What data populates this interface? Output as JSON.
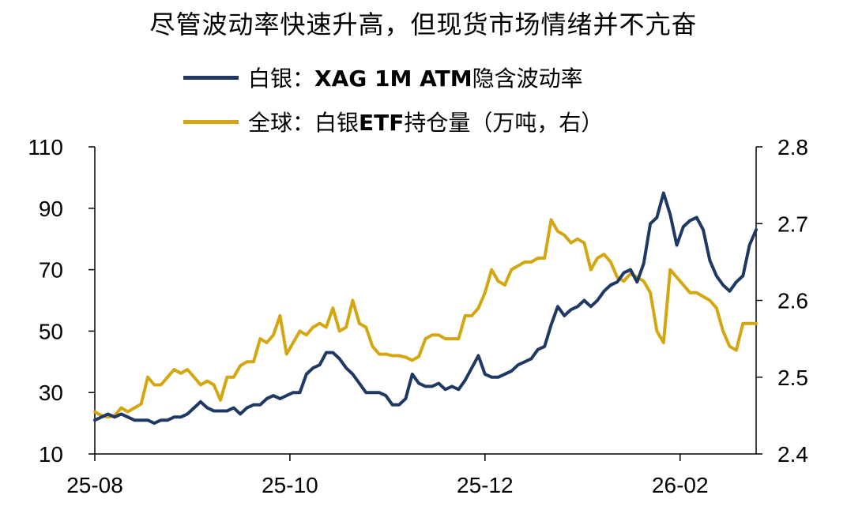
{
  "chart_data": {
    "type": "line",
    "title": "尽管波动率快速升高，但现货市场情绪并不亢奋",
    "x_ticks": [
      "25-08",
      "25-10",
      "25-12",
      "26-02"
    ],
    "y_left": {
      "lim": [
        10,
        110
      ],
      "ticks": [
        "10",
        "30",
        "50",
        "70",
        "90",
        "110"
      ]
    },
    "y_right": {
      "lim": [
        2.4,
        2.8
      ],
      "ticks": [
        "2.4",
        "2.5",
        "2.6",
        "2.7",
        "2.8"
      ]
    },
    "legend_position": "top-left",
    "series": [
      {
        "name": "XAG 1M ATM隐含波动率",
        "legend_prefix": "白银：",
        "legend_bold": "XAG 1M ATM",
        "legend_suffix": "隐含波动率",
        "axis": "left",
        "color": "#1f3864",
        "t": [
          0,
          0.01,
          0.02,
          0.03,
          0.04,
          0.05,
          0.06,
          0.07,
          0.08,
          0.09,
          0.1,
          0.11,
          0.12,
          0.13,
          0.14,
          0.15,
          0.16,
          0.17,
          0.18,
          0.19,
          0.2,
          0.21,
          0.22,
          0.23,
          0.24,
          0.25,
          0.26,
          0.27,
          0.28,
          0.29,
          0.3,
          0.31,
          0.32,
          0.33,
          0.34,
          0.35,
          0.36,
          0.37,
          0.38,
          0.39,
          0.4,
          0.41,
          0.42,
          0.43,
          0.44,
          0.45,
          0.46,
          0.47,
          0.48,
          0.49,
          0.5,
          0.51,
          0.52,
          0.53,
          0.54,
          0.55,
          0.56,
          0.57,
          0.58,
          0.59,
          0.6,
          0.61,
          0.62,
          0.63,
          0.64,
          0.65,
          0.66,
          0.67,
          0.68,
          0.69,
          0.7,
          0.71,
          0.72,
          0.73,
          0.74,
          0.75,
          0.76,
          0.77,
          0.78,
          0.79,
          0.8,
          0.81,
          0.82,
          0.83,
          0.84,
          0.85,
          0.86,
          0.87,
          0.88,
          0.89,
          0.9,
          0.91,
          0.92,
          0.93,
          0.94,
          0.95,
          0.96,
          0.97,
          0.98,
          0.99,
          1.0
        ],
        "values": [
          21,
          22,
          23,
          22,
          23,
          22,
          21,
          21,
          21,
          20,
          21,
          21,
          22,
          22,
          23,
          25,
          27,
          25,
          24,
          24,
          24,
          25,
          23,
          25,
          26,
          26,
          28,
          29,
          28,
          29,
          30,
          30,
          36,
          38,
          39,
          43,
          43,
          41,
          38,
          36,
          33,
          30,
          30,
          30,
          29,
          26,
          26,
          28,
          36,
          33,
          32,
          32,
          33,
          31,
          32,
          31,
          34,
          38,
          42,
          36,
          35,
          35,
          36,
          37,
          39,
          40,
          41,
          44,
          45,
          52,
          58,
          55,
          57,
          58,
          60,
          58,
          60,
          63,
          65,
          66,
          69,
          70,
          66,
          72,
          85,
          87,
          95,
          88,
          78,
          84,
          86,
          87,
          83,
          73,
          68,
          65,
          63,
          66,
          68,
          78,
          83
        ]
      },
      {
        "name": "白银ETF持仓量（万吨，右）",
        "legend_prefix": "全球：白银",
        "legend_bold": "ETF",
        "legend_suffix": "持仓量（万吨，右）",
        "axis": "right",
        "color": "#d4a60f",
        "t": [
          0,
          0.01,
          0.02,
          0.03,
          0.04,
          0.05,
          0.06,
          0.07,
          0.08,
          0.09,
          0.1,
          0.11,
          0.12,
          0.13,
          0.14,
          0.15,
          0.16,
          0.17,
          0.18,
          0.19,
          0.2,
          0.21,
          0.22,
          0.23,
          0.24,
          0.25,
          0.26,
          0.27,
          0.28,
          0.29,
          0.3,
          0.31,
          0.32,
          0.33,
          0.34,
          0.35,
          0.36,
          0.37,
          0.38,
          0.39,
          0.4,
          0.41,
          0.42,
          0.43,
          0.44,
          0.45,
          0.46,
          0.47,
          0.48,
          0.49,
          0.5,
          0.51,
          0.52,
          0.53,
          0.54,
          0.55,
          0.56,
          0.57,
          0.58,
          0.59,
          0.6,
          0.61,
          0.62,
          0.63,
          0.64,
          0.65,
          0.66,
          0.67,
          0.68,
          0.69,
          0.7,
          0.71,
          0.72,
          0.73,
          0.74,
          0.75,
          0.76,
          0.77,
          0.78,
          0.79,
          0.8,
          0.81,
          0.82,
          0.83,
          0.84,
          0.85,
          0.86,
          0.87,
          0.88,
          0.89,
          0.9,
          0.91,
          0.92,
          0.93,
          0.94,
          0.95,
          0.96,
          0.97,
          0.98,
          0.99,
          1.0
        ],
        "values": [
          2.455,
          2.45,
          2.448,
          2.45,
          2.46,
          2.455,
          2.46,
          2.465,
          2.5,
          2.49,
          2.49,
          2.5,
          2.51,
          2.505,
          2.51,
          2.5,
          2.49,
          2.495,
          2.49,
          2.47,
          2.5,
          2.5,
          2.515,
          2.52,
          2.52,
          2.55,
          2.545,
          2.555,
          2.58,
          2.53,
          2.545,
          2.56,
          2.555,
          2.565,
          2.57,
          2.565,
          2.59,
          2.56,
          2.565,
          2.6,
          2.57,
          2.565,
          2.54,
          2.53,
          2.53,
          2.528,
          2.528,
          2.526,
          2.522,
          2.527,
          2.55,
          2.555,
          2.555,
          2.55,
          2.55,
          2.55,
          2.58,
          2.58,
          2.59,
          2.61,
          2.64,
          2.625,
          2.62,
          2.64,
          2.645,
          2.65,
          2.65,
          2.655,
          2.655,
          2.705,
          2.69,
          2.685,
          2.675,
          2.68,
          2.675,
          2.64,
          2.655,
          2.66,
          2.65,
          2.63,
          2.625,
          2.635,
          2.63,
          2.625,
          2.61,
          2.56,
          2.545,
          2.64,
          2.63,
          2.62,
          2.61,
          2.61,
          2.605,
          2.6,
          2.59,
          2.56,
          2.54,
          2.535,
          2.57,
          2.57,
          2.57
        ]
      }
    ]
  }
}
